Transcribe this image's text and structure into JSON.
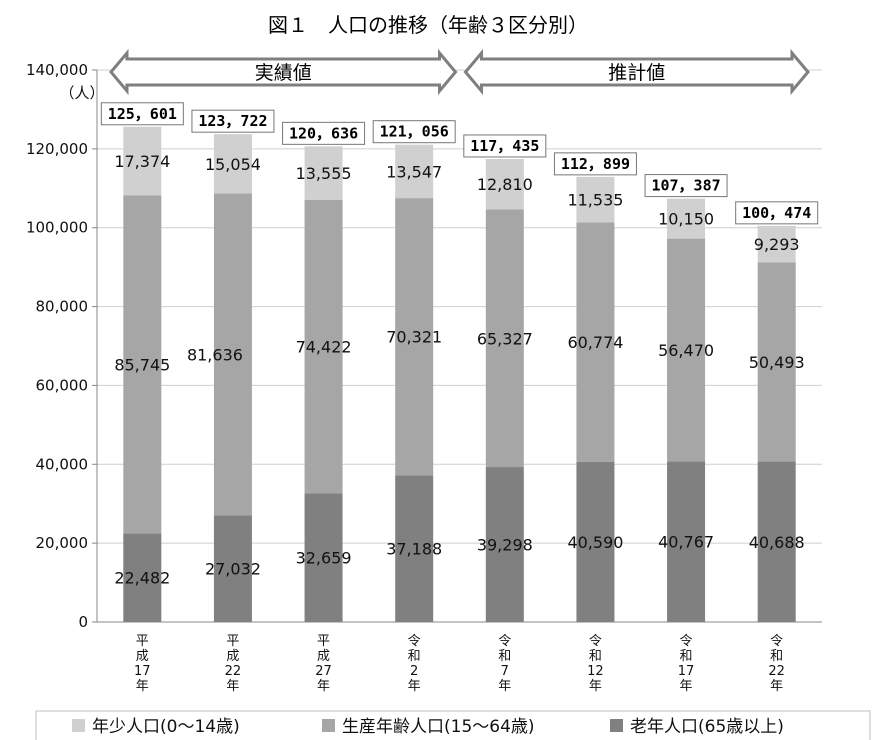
{
  "chart_data": {
    "type": "bar",
    "stacked": true,
    "title": "図１　人口の推移（年齢３区分別）",
    "unit": "（人）",
    "ylim": [
      0,
      140000
    ],
    "ytick_labels": [
      "0",
      "20,000",
      "40,000",
      "60,000",
      "80,000",
      "100,000",
      "120,000",
      "140,000"
    ],
    "grid": true,
    "categories": [
      [
        "平",
        "成",
        "17",
        "年"
      ],
      [
        "平",
        "成",
        "22",
        "年"
      ],
      [
        "平",
        "成",
        "27",
        "年"
      ],
      [
        "令",
        "和",
        "2",
        "年"
      ],
      [
        "令",
        "和",
        "7",
        "年"
      ],
      [
        "令",
        "和",
        "12",
        "年"
      ],
      [
        "令",
        "和",
        "17",
        "年"
      ],
      [
        "令",
        "和",
        "22",
        "年"
      ]
    ],
    "series": [
      {
        "name": "老年人口(65歳以上)",
        "color": "#808080",
        "values": [
          22482,
          27032,
          32659,
          37188,
          39298,
          40590,
          40767,
          40688
        ],
        "labels": [
          "22,482",
          "27,032",
          "32,659",
          "37,188",
          "39,298",
          "40,590",
          "40,767",
          "40,688"
        ]
      },
      {
        "name": "生産年齢人口(15～64歳)",
        "color": "#a6a6a6",
        "values": [
          85745,
          81636,
          74422,
          70321,
          65327,
          60774,
          56470,
          50493
        ],
        "labels": [
          "85,745",
          "81,636",
          "74,422",
          "70,321",
          "65,327",
          "60,774",
          "56,470",
          "50,493"
        ]
      },
      {
        "name": "年少人口(0～14歳)",
        "color": "#d0d0d0",
        "values": [
          17374,
          15054,
          13555,
          13547,
          12810,
          11535,
          10150,
          9293
        ],
        "labels": [
          "17,374",
          "15,054",
          "13,555",
          "13,547",
          "12,810",
          "11,535",
          "10,150",
          "9,293"
        ]
      }
    ],
    "totals": [
      125601,
      123722,
      120636,
      121056,
      117435,
      112899,
      107387,
      100474
    ],
    "total_labels": [
      "125，601",
      "123，722",
      "120，636",
      "121，056",
      "117，435",
      "112，899",
      "107，387",
      "100，474"
    ],
    "banners": [
      {
        "label": "実績値",
        "from": 0,
        "to": 3
      },
      {
        "label": "推計値",
        "from": 4,
        "to": 7
      }
    ],
    "legend_order": [
      2,
      1,
      0
    ],
    "legend_position": "bottom"
  }
}
